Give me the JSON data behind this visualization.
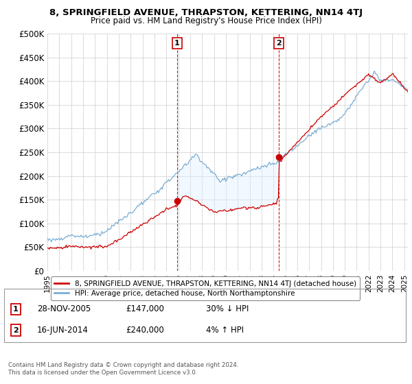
{
  "title": "8, SPRINGFIELD AVENUE, THRAPSTON, KETTERING, NN14 4TJ",
  "subtitle": "Price paid vs. HM Land Registry's House Price Index (HPI)",
  "ylabel_ticks": [
    "£0",
    "£50K",
    "£100K",
    "£150K",
    "£200K",
    "£250K",
    "£300K",
    "£350K",
    "£400K",
    "£450K",
    "£500K"
  ],
  "ytick_values": [
    0,
    50000,
    100000,
    150000,
    200000,
    250000,
    300000,
    350000,
    400000,
    450000,
    500000
  ],
  "ylim": [
    0,
    500000
  ],
  "xlim_start": 1995.0,
  "xlim_end": 2025.3,
  "hpi_color": "#7aadd4",
  "price_color": "#cc0000",
  "fill_color": "#ddeeff",
  "background_color": "#ffffff",
  "grid_color": "#cccccc",
  "sale1": {
    "date_num": 2005.91,
    "price": 147000,
    "label": "1",
    "date_str": "28-NOV-2005",
    "hpi_pct": "30% ↓ HPI"
  },
  "sale2": {
    "date_num": 2014.46,
    "price": 240000,
    "label": "2",
    "date_str": "16-JUN-2014",
    "hpi_pct": "4% ↑ HPI"
  },
  "legend_entries": [
    "8, SPRINGFIELD AVENUE, THRAPSTON, KETTERING, NN14 4TJ (detached house)",
    "HPI: Average price, detached house, North Northamptonshire"
  ],
  "footer": "Contains HM Land Registry data © Crown copyright and database right 2024.\nThis data is licensed under the Open Government Licence v3.0."
}
